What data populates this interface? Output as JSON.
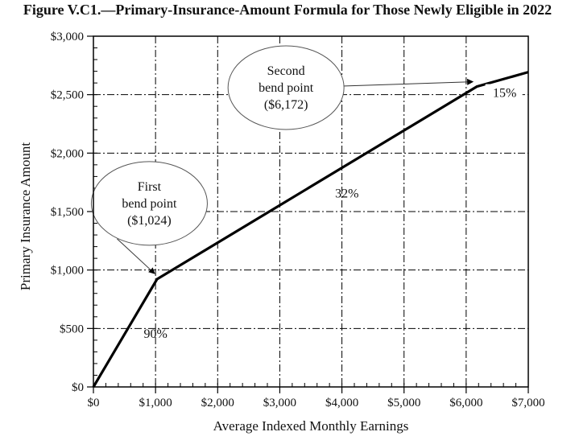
{
  "chart_data": {
    "type": "line",
    "title": "Figure V.C1.—Primary-Insurance-Amount Formula for Those Newly Eligible in 2022",
    "xlabel": "Average Indexed Monthly Earnings",
    "ylabel": "Primary Insurance Amount",
    "xlim": [
      0,
      7000
    ],
    "ylim": [
      0,
      3000
    ],
    "x_ticks": [
      0,
      1000,
      2000,
      3000,
      4000,
      5000,
      6000,
      7000
    ],
    "x_tick_labels": [
      "$0",
      "$1,000",
      "$2,000",
      "$3,000",
      "$4,000",
      "$5,000",
      "$6,000",
      "$7,000"
    ],
    "y_ticks": [
      0,
      500,
      1000,
      1500,
      2000,
      2500,
      3000
    ],
    "y_tick_labels": [
      "$0",
      "$500",
      "$1,000",
      "$1,500",
      "$2,000",
      "$2,500",
      "$3,000"
    ],
    "x_minor_step": 200,
    "y_minor_step": 100,
    "grid": true,
    "series": [
      {
        "name": "PIA formula",
        "x": [
          0,
          1024,
          6172,
          7000
        ],
        "y": [
          0,
          921.6,
          2569,
          2693
        ]
      }
    ],
    "segment_labels": [
      {
        "text": "90%",
        "x": 1000,
        "y": 420
      },
      {
        "text": "32%",
        "x": 4080,
        "y": 1620
      },
      {
        "text": "15%",
        "x": 6620,
        "y": 2480
      }
    ],
    "annotations": [
      {
        "lines": [
          "First",
          "bend point",
          "($1,024)"
        ],
        "cx": 900,
        "cy": 1570,
        "target_x": 1024,
        "target_y": 921.6
      },
      {
        "lines": [
          "Second",
          "bend point",
          "($6,172)"
        ],
        "cx": 3100,
        "cy": 2560,
        "target_x": 6172,
        "target_y": 2569
      }
    ]
  }
}
